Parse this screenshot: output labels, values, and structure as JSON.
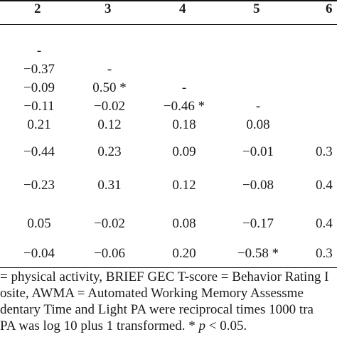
{
  "table": {
    "column_headers": [
      "2",
      "3",
      "4",
      "5",
      "6"
    ],
    "rows": [
      [
        "-",
        "",
        "",
        "",
        ""
      ],
      [
        "−0.37",
        "-",
        "",
        "",
        ""
      ],
      [
        "−0.09",
        "0.50 *",
        "-",
        "",
        ""
      ],
      [
        "−0.11",
        "−0.02",
        "−0.46 *",
        "-",
        ""
      ],
      [
        "0.21",
        "0.12",
        "0.18",
        "0.08",
        ""
      ],
      [
        "−0.44",
        "0.23",
        "0.09",
        "−0.01",
        "0.3"
      ],
      [
        "−0.23",
        "0.31",
        "0.12",
        "−0.08",
        "0.4"
      ],
      [
        "0.05",
        "−0.02",
        "0.08",
        "−0.17",
        "0.4"
      ],
      [
        "−0.04",
        "−0.06",
        "0.20",
        "−0.58 *",
        "0.3"
      ]
    ]
  },
  "footnote": {
    "line1": "= physical activity, BRIEF GEC T-score = Behavior Rating I",
    "line2": "osite, AWMA = Automated Working Memory Assessme",
    "line3": "dentary Time and Light PA were reciprocal times 1000 tra",
    "line4_pre": "PA was log 10 plus 1 transformed. * ",
    "line4_p": "p",
    "line4_post": " < 0.05."
  }
}
